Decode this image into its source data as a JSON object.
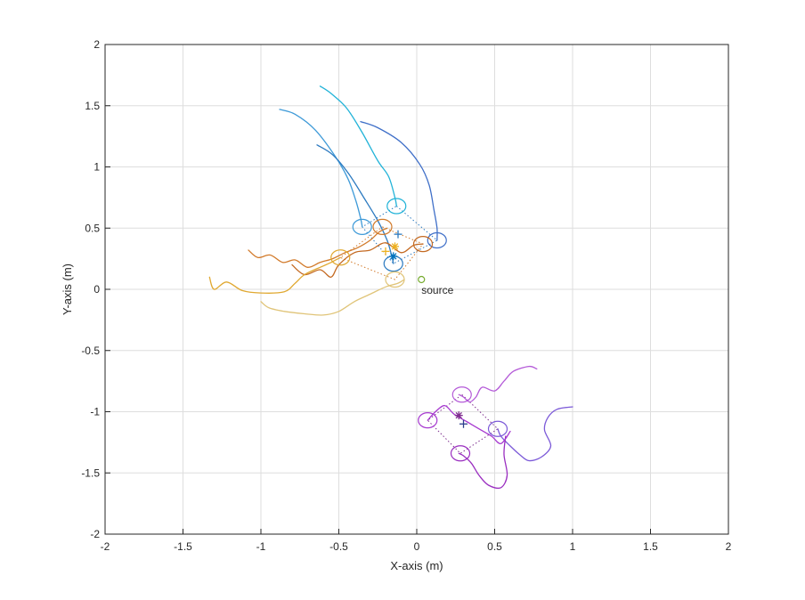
{
  "chart_data": {
    "type": "line",
    "title": "",
    "xlabel": "X-axis (m)",
    "ylabel": "Y-axis (m)",
    "xlim": [
      -2,
      2
    ],
    "ylim": [
      -2,
      2
    ],
    "xticks": [
      "-2",
      "-1.5",
      "-1",
      "-0.5",
      "0",
      "0.5",
      "1",
      "1.5",
      "2"
    ],
    "yticks": [
      "-2",
      "-1.5",
      "-1",
      "-0.5",
      "0",
      "0.5",
      "1",
      "1.5",
      "2"
    ],
    "grid": true,
    "source": {
      "label": "source",
      "x": 0.03,
      "y": 0.08,
      "color": "#77ac30"
    },
    "series": [
      {
        "color": "#22b3d8",
        "points": [
          [
            -0.62,
            1.66
          ],
          [
            -0.55,
            1.6
          ],
          [
            -0.45,
            1.48
          ],
          [
            -0.35,
            1.28
          ],
          [
            -0.25,
            1.05
          ],
          [
            -0.18,
            0.92
          ],
          [
            -0.14,
            0.75
          ],
          [
            -0.13,
            0.68
          ]
        ]
      },
      {
        "color": "#3f6fc8",
        "points": [
          [
            -0.36,
            1.37
          ],
          [
            -0.25,
            1.32
          ],
          [
            -0.1,
            1.2
          ],
          [
            0.02,
            1.02
          ],
          [
            0.08,
            0.85
          ],
          [
            0.11,
            0.65
          ],
          [
            0.13,
            0.5
          ],
          [
            0.13,
            0.4
          ]
        ]
      },
      {
        "color": "#3e9ad8",
        "points": [
          [
            -0.88,
            1.47
          ],
          [
            -0.78,
            1.43
          ],
          [
            -0.65,
            1.3
          ],
          [
            -0.52,
            1.08
          ],
          [
            -0.44,
            0.9
          ],
          [
            -0.39,
            0.72
          ],
          [
            -0.36,
            0.58
          ],
          [
            -0.35,
            0.51
          ]
        ]
      },
      {
        "color": "#2c7ac0",
        "points": [
          [
            -0.64,
            1.18
          ],
          [
            -0.54,
            1.1
          ],
          [
            -0.44,
            0.95
          ],
          [
            -0.34,
            0.75
          ],
          [
            -0.25,
            0.56
          ],
          [
            -0.19,
            0.4
          ],
          [
            -0.16,
            0.27
          ],
          [
            -0.15,
            0.21
          ]
        ]
      },
      {
        "color": "#d27a2a",
        "points": [
          [
            -1.08,
            0.32
          ],
          [
            -1.02,
            0.26
          ],
          [
            -0.94,
            0.28
          ],
          [
            -0.86,
            0.22
          ],
          [
            -0.78,
            0.24
          ],
          [
            -0.7,
            0.18
          ],
          [
            -0.62,
            0.22
          ],
          [
            -0.54,
            0.25
          ],
          [
            -0.46,
            0.3
          ],
          [
            -0.38,
            0.34
          ],
          [
            -0.3,
            0.4
          ],
          [
            -0.24,
            0.47
          ],
          [
            -0.19,
            0.5
          ]
        ]
      },
      {
        "color": "#c46a22",
        "points": [
          [
            -0.8,
            0.2
          ],
          [
            -0.72,
            0.12
          ],
          [
            -0.62,
            0.16
          ],
          [
            -0.55,
            0.1
          ],
          [
            -0.5,
            0.2
          ],
          [
            -0.4,
            0.3
          ],
          [
            -0.3,
            0.32
          ],
          [
            -0.2,
            0.38
          ],
          [
            -0.1,
            0.3
          ],
          [
            -0.02,
            0.36
          ],
          [
            0.04,
            0.37
          ]
        ]
      },
      {
        "color": "#e0a830",
        "points": [
          [
            -1.33,
            0.1
          ],
          [
            -1.3,
            0.0
          ],
          [
            -1.22,
            0.06
          ],
          [
            -1.12,
            -0.01
          ],
          [
            -1.0,
            -0.03
          ],
          [
            -0.85,
            -0.02
          ],
          [
            -0.78,
            0.05
          ],
          [
            -0.72,
            0.12
          ],
          [
            -0.62,
            0.18
          ],
          [
            -0.55,
            0.22
          ],
          [
            -0.49,
            0.26
          ]
        ]
      },
      {
        "color": "#e0c478",
        "points": [
          [
            -1.0,
            -0.1
          ],
          [
            -0.95,
            -0.15
          ],
          [
            -0.85,
            -0.18
          ],
          [
            -0.72,
            -0.2
          ],
          [
            -0.6,
            -0.21
          ],
          [
            -0.5,
            -0.18
          ],
          [
            -0.4,
            -0.1
          ],
          [
            -0.3,
            -0.04
          ],
          [
            -0.2,
            0.02
          ],
          [
            -0.12,
            0.05
          ],
          [
            -0.08,
            0.08
          ]
        ]
      },
      {
        "color": "#b45ad8",
        "points": [
          [
            0.77,
            -0.65
          ],
          [
            0.72,
            -0.63
          ],
          [
            0.62,
            -0.67
          ],
          [
            0.56,
            -0.75
          ],
          [
            0.5,
            -0.83
          ],
          [
            0.42,
            -0.8
          ],
          [
            0.38,
            -0.88
          ],
          [
            0.34,
            -0.92
          ],
          [
            0.3,
            -0.88
          ],
          [
            0.27,
            -0.86
          ]
        ]
      },
      {
        "color": "#7c5ad8",
        "points": [
          [
            1.0,
            -0.96
          ],
          [
            0.9,
            -0.98
          ],
          [
            0.84,
            -1.05
          ],
          [
            0.82,
            -1.15
          ],
          [
            0.86,
            -1.28
          ],
          [
            0.8,
            -1.37
          ],
          [
            0.72,
            -1.4
          ],
          [
            0.66,
            -1.35
          ],
          [
            0.6,
            -1.28
          ],
          [
            0.54,
            -1.2
          ],
          [
            0.52,
            -1.14
          ]
        ]
      },
      {
        "color": "#9a2ec0",
        "points": [
          [
            0.57,
            -1.2
          ],
          [
            0.56,
            -1.35
          ],
          [
            0.58,
            -1.52
          ],
          [
            0.54,
            -1.62
          ],
          [
            0.46,
            -1.6
          ],
          [
            0.4,
            -1.52
          ],
          [
            0.35,
            -1.42
          ],
          [
            0.3,
            -1.36
          ],
          [
            0.27,
            -1.34
          ]
        ]
      },
      {
        "color": "#a73ad0",
        "points": [
          [
            0.07,
            -1.07
          ],
          [
            0.12,
            -1.0
          ],
          [
            0.18,
            -0.95
          ],
          [
            0.24,
            -1.02
          ],
          [
            0.32,
            -1.08
          ],
          [
            0.4,
            -1.14
          ],
          [
            0.48,
            -1.2
          ],
          [
            0.54,
            -1.26
          ],
          [
            0.6,
            -1.16
          ]
        ]
      }
    ],
    "ellipses": [
      {
        "x": -0.13,
        "y": 0.68,
        "color": "#22b3d8"
      },
      {
        "x": 0.13,
        "y": 0.4,
        "color": "#3f6fc8"
      },
      {
        "x": -0.35,
        "y": 0.51,
        "color": "#3e9ad8"
      },
      {
        "x": -0.15,
        "y": 0.21,
        "color": "#2c7ac0"
      },
      {
        "x": -0.22,
        "y": 0.51,
        "color": "#d27a2a"
      },
      {
        "x": 0.04,
        "y": 0.37,
        "color": "#c46a22"
      },
      {
        "x": -0.49,
        "y": 0.26,
        "color": "#e0a830"
      },
      {
        "x": -0.14,
        "y": 0.08,
        "color": "#e0c478"
      },
      {
        "x": 0.29,
        "y": -0.86,
        "color": "#b45ad8"
      },
      {
        "x": 0.52,
        "y": -1.14,
        "color": "#7c5ad8"
      },
      {
        "x": 0.28,
        "y": -1.34,
        "color": "#9a2ec0"
      },
      {
        "x": 0.07,
        "y": -1.07,
        "color": "#a73ad0"
      }
    ],
    "formation_links": [
      {
        "color": "#2c7ac0",
        "points": [
          [
            -0.13,
            0.68
          ],
          [
            0.13,
            0.4
          ],
          [
            -0.15,
            0.21
          ],
          [
            -0.35,
            0.51
          ],
          [
            -0.13,
            0.68
          ]
        ]
      },
      {
        "color": "#d27a2a",
        "points": [
          [
            -0.22,
            0.51
          ],
          [
            0.04,
            0.37
          ],
          [
            -0.14,
            0.08
          ],
          [
            -0.49,
            0.26
          ],
          [
            -0.22,
            0.51
          ]
        ]
      },
      {
        "color": "#7e2f8e",
        "points": [
          [
            0.29,
            -0.86
          ],
          [
            0.52,
            -1.14
          ],
          [
            0.28,
            -1.34
          ],
          [
            0.07,
            -1.07
          ],
          [
            0.29,
            -0.86
          ]
        ]
      }
    ],
    "markers": [
      {
        "symbol": "+",
        "x": -0.12,
        "y": 0.45,
        "color": "#2c7ac0"
      },
      {
        "symbol": "*",
        "x": -0.15,
        "y": 0.27,
        "color": "#0072bd"
      },
      {
        "symbol": "*",
        "x": -0.14,
        "y": 0.35,
        "color": "#edb120"
      },
      {
        "symbol": "+",
        "x": -0.2,
        "y": 0.31,
        "color": "#edb120"
      },
      {
        "symbol": "*",
        "x": 0.27,
        "y": -1.03,
        "color": "#7e2f8e"
      },
      {
        "symbol": "+",
        "x": 0.3,
        "y": -1.1,
        "color": "#2c3e8c"
      }
    ]
  }
}
